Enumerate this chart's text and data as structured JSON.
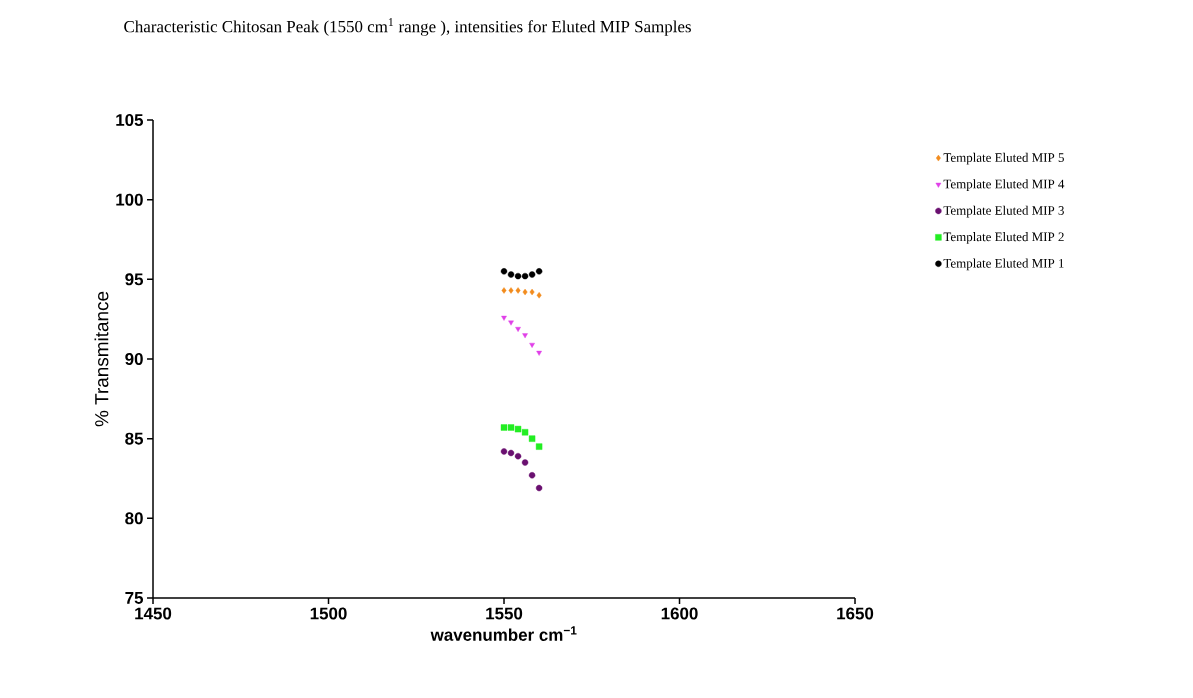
{
  "chart_data": {
    "type": "scatter",
    "title": "Characteristic Chitosan Peak (1550 cm$^{1}$ range ), intensities for Eluted MIP Samples",
    "xlabel": "wavenumber cm$^{−1}$",
    "ylabel": "% Transmitance",
    "x": [
      1550,
      1552,
      1554,
      1556,
      1558,
      1560
    ],
    "series": [
      {
        "name": "Template Eluted MIP 5",
        "color": "#f28c1e",
        "marker": "diamond",
        "values": [
          94.3,
          94.3,
          94.3,
          94.2,
          94.2,
          94.0
        ]
      },
      {
        "name": "Template Eluted MIP 4",
        "color": "#e040e8",
        "marker": "triangle",
        "values": [
          92.6,
          92.3,
          91.9,
          91.5,
          90.9,
          90.4
        ]
      },
      {
        "name": "Template Eluted MIP 3",
        "color": "#6a1070",
        "marker": "circle",
        "values": [
          84.2,
          84.1,
          83.9,
          83.5,
          82.7,
          81.9
        ]
      },
      {
        "name": "Template Eluted MIP 2",
        "color": "#22ee22",
        "marker": "square",
        "values": [
          85.7,
          85.7,
          85.6,
          85.4,
          85.0,
          84.5
        ]
      },
      {
        "name": "Template Eluted MIP 1",
        "color": "#000000",
        "marker": "circle",
        "values": [
          95.5,
          95.3,
          95.2,
          95.2,
          95.3,
          95.5
        ]
      }
    ],
    "xlim": [
      1450,
      1650
    ],
    "ylim": [
      75,
      105
    ],
    "xticks": [
      1450,
      1500,
      1550,
      1600,
      1650
    ],
    "yticks": [
      75,
      80,
      85,
      90,
      95,
      100,
      105
    ],
    "grid": false,
    "legend": "right"
  }
}
